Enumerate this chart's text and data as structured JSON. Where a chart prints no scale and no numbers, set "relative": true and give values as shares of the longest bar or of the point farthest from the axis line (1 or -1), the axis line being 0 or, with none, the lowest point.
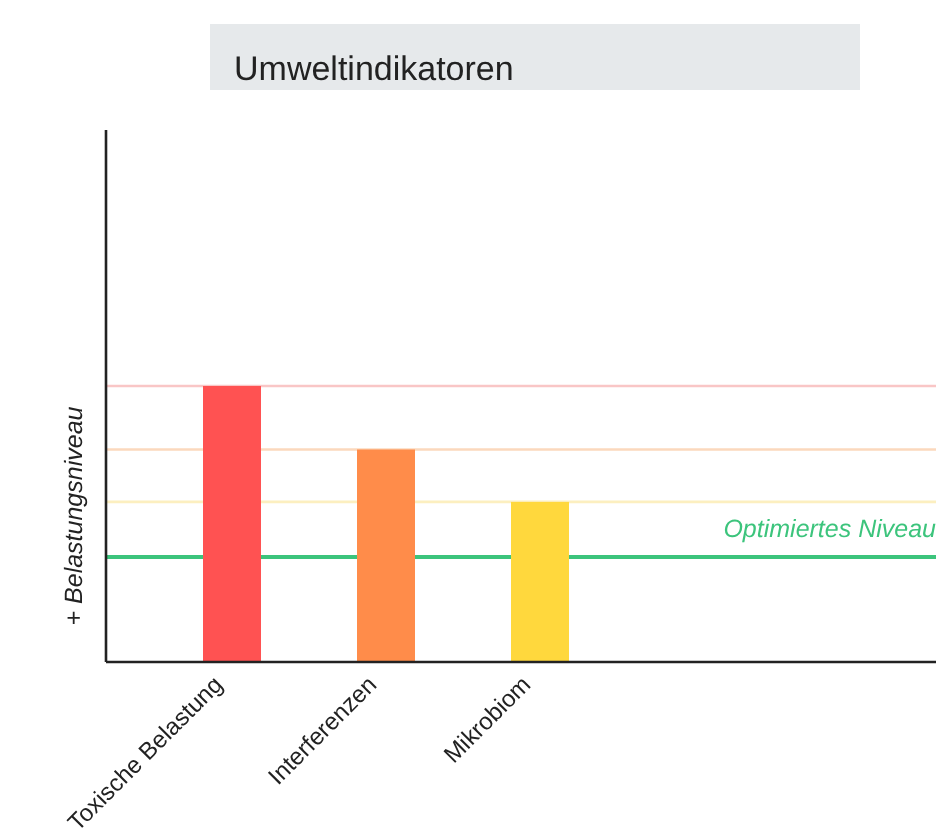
{
  "chart_data": {
    "type": "bar",
    "title": "Umweltindikatoren",
    "ylabel": "+ Belastungsniveau",
    "relative": true,
    "categories": [
      "Toxische Belastung",
      "Interferenzen",
      "Mikrobiom"
    ],
    "values": [
      1,
      0.77,
      0.58
    ],
    "colors": [
      "#ff5252",
      "#ff8c4a",
      "#ffd83d"
    ],
    "ref_lines": [
      {
        "axis": "y",
        "value": 1,
        "color": "#f9c6c6"
      },
      {
        "axis": "y",
        "value": 0.77,
        "color": "#fbd8bd"
      },
      {
        "axis": "y",
        "value": 0.58,
        "color": "#fcefc0"
      },
      {
        "axis": "y",
        "value": 0.38,
        "color": "#3cc47c",
        "label": "Optimiertes Niveau"
      }
    ]
  }
}
